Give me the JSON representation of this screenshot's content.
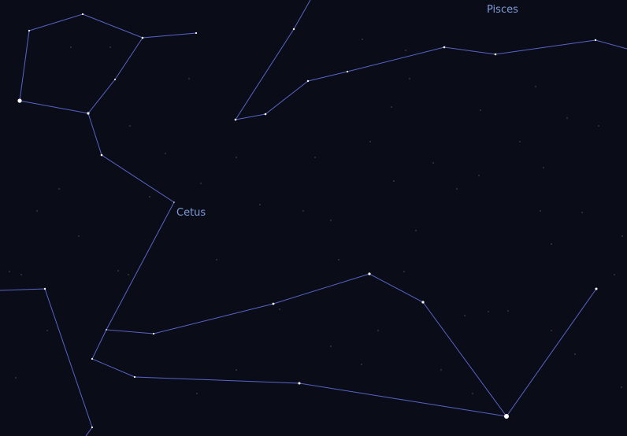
{
  "sky": {
    "background_color": "#0a0d17",
    "line_color": "#5a63c8",
    "label_color": "#7f9bd9",
    "star_color": "#ffffff"
  },
  "constellations": {
    "cetus": {
      "name": "Cetus"
    },
    "pisces": {
      "name": "Pisces"
    }
  }
}
